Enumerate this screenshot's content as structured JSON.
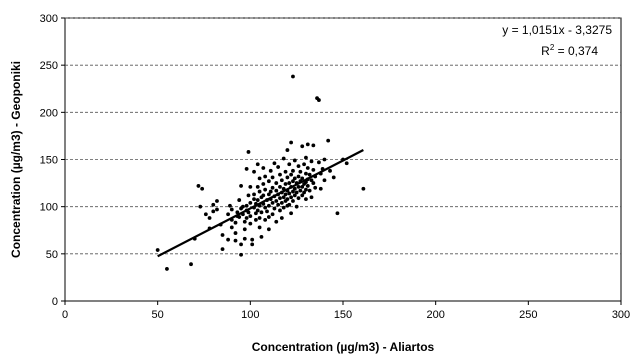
{
  "chart_data": {
    "type": "scatter",
    "title": "",
    "xlabel": "Concentration (µg/m3) - Aliartos",
    "ylabel": "Concentration (µg/m3) - Geoponiki",
    "xlim": [
      0,
      300
    ],
    "ylim": [
      0,
      300
    ],
    "xticks": [
      0,
      50,
      100,
      150,
      200,
      250,
      300
    ],
    "yticks": [
      0,
      50,
      100,
      150,
      200,
      250,
      300
    ],
    "xtick_labels": [
      "0",
      "50",
      "100",
      "150",
      "200",
      "250",
      "300"
    ],
    "ytick_labels": [
      "0",
      "50",
      "100",
      "150",
      "200",
      "250",
      "300"
    ],
    "grid": "horizontal dashed",
    "annotation": {
      "equation": "y = 1,0151x - 3,3275",
      "r2_label": "R",
      "r2_sup": "2",
      "r2_value": " = 0,374",
      "placement": "top-right"
    },
    "trendline": {
      "slope": 1.0151,
      "intercept": -3.3275,
      "x_range": [
        50,
        161
      ]
    },
    "colors": {
      "points": "#000000",
      "line": "#000000",
      "grid": "#555555"
    },
    "points": [
      [
        50,
        54
      ],
      [
        55,
        34
      ],
      [
        68,
        39
      ],
      [
        70,
        66
      ],
      [
        72,
        122
      ],
      [
        74,
        119
      ],
      [
        73,
        100
      ],
      [
        76,
        92
      ],
      [
        78,
        77
      ],
      [
        78,
        88
      ],
      [
        80,
        102
      ],
      [
        80,
        95
      ],
      [
        82,
        106
      ],
      [
        82,
        97
      ],
      [
        84,
        81
      ],
      [
        85,
        70
      ],
      [
        85,
        55
      ],
      [
        88,
        65
      ],
      [
        88,
        92
      ],
      [
        89,
        101
      ],
      [
        90,
        97
      ],
      [
        90,
        86
      ],
      [
        90,
        78
      ],
      [
        92,
        83
      ],
      [
        92,
        72
      ],
      [
        92,
        64
      ],
      [
        93,
        94
      ],
      [
        93,
        90
      ],
      [
        94,
        107
      ],
      [
        94,
        89
      ],
      [
        95,
        122
      ],
      [
        95,
        98
      ],
      [
        95,
        60
      ],
      [
        95,
        49
      ],
      [
        96,
        100
      ],
      [
        96,
        92
      ],
      [
        97,
        84
      ],
      [
        97,
        76
      ],
      [
        97,
        66
      ],
      [
        98,
        140
      ],
      [
        98,
        101
      ],
      [
        98,
        96
      ],
      [
        98,
        88
      ],
      [
        99,
        158
      ],
      [
        99,
        112
      ],
      [
        99,
        94
      ],
      [
        100,
        121
      ],
      [
        100,
        104
      ],
      [
        100,
        90
      ],
      [
        100,
        82
      ],
      [
        101,
        65
      ],
      [
        101,
        60
      ],
      [
        102,
        137
      ],
      [
        102,
        113
      ],
      [
        102,
        108
      ],
      [
        102,
        99
      ],
      [
        103,
        103
      ],
      [
        103,
        93
      ],
      [
        103,
        86
      ],
      [
        104,
        145
      ],
      [
        104,
        121
      ],
      [
        104,
        107
      ],
      [
        104,
        96
      ],
      [
        105,
        130
      ],
      [
        105,
        116
      ],
      [
        105,
        101
      ],
      [
        105,
        88
      ],
      [
        105,
        78
      ],
      [
        106,
        110
      ],
      [
        106,
        94
      ],
      [
        106,
        68
      ],
      [
        107,
        141
      ],
      [
        107,
        124
      ],
      [
        107,
        112
      ],
      [
        107,
        103
      ],
      [
        108,
        132
      ],
      [
        108,
        118
      ],
      [
        108,
        99
      ],
      [
        108,
        86
      ],
      [
        109,
        107
      ],
      [
        109,
        95
      ],
      [
        110,
        127
      ],
      [
        110,
        113
      ],
      [
        110,
        101
      ],
      [
        110,
        89
      ],
      [
        110,
        76
      ],
      [
        111,
        138
      ],
      [
        111,
        116
      ],
      [
        111,
        108
      ],
      [
        112,
        131
      ],
      [
        112,
        120
      ],
      [
        112,
        104
      ],
      [
        112,
        92
      ],
      [
        113,
        146
      ],
      [
        113,
        111
      ],
      [
        113,
        98
      ],
      [
        114,
        125
      ],
      [
        114,
        117
      ],
      [
        114,
        106
      ],
      [
        114,
        84
      ],
      [
        115,
        142
      ],
      [
        115,
        113
      ],
      [
        115,
        102
      ],
      [
        116,
        134
      ],
      [
        116,
        121
      ],
      [
        116,
        109
      ],
      [
        116,
        96
      ],
      [
        117,
        128
      ],
      [
        117,
        115
      ],
      [
        117,
        104
      ],
      [
        117,
        88
      ],
      [
        118,
        151
      ],
      [
        118,
        119
      ],
      [
        118,
        110
      ],
      [
        118,
        99
      ],
      [
        119,
        137
      ],
      [
        119,
        124
      ],
      [
        119,
        113
      ],
      [
        119,
        106
      ],
      [
        120,
        160
      ],
      [
        120,
        131
      ],
      [
        120,
        117
      ],
      [
        120,
        108
      ],
      [
        120,
        101
      ],
      [
        121,
        145
      ],
      [
        121,
        125
      ],
      [
        121,
        114
      ],
      [
        121,
        102
      ],
      [
        122,
        168
      ],
      [
        122,
        134
      ],
      [
        122,
        121
      ],
      [
        122,
        110
      ],
      [
        122,
        93
      ],
      [
        123,
        238
      ],
      [
        123,
        138
      ],
      [
        123,
        127
      ],
      [
        123,
        116
      ],
      [
        123,
        106
      ],
      [
        124,
        149
      ],
      [
        124,
        130
      ],
      [
        124,
        119
      ],
      [
        124,
        112
      ],
      [
        125,
        125
      ],
      [
        125,
        115
      ],
      [
        125,
        100
      ],
      [
        126,
        143
      ],
      [
        126,
        132
      ],
      [
        126,
        121
      ],
      [
        126,
        109
      ],
      [
        127,
        137
      ],
      [
        127,
        127
      ],
      [
        127,
        117
      ],
      [
        128,
        164
      ],
      [
        128,
        130
      ],
      [
        128,
        121
      ],
      [
        128,
        112
      ],
      [
        129,
        145
      ],
      [
        129,
        124
      ],
      [
        129,
        115
      ],
      [
        130,
        152
      ],
      [
        130,
        135
      ],
      [
        130,
        126
      ],
      [
        130,
        118
      ],
      [
        130,
        108
      ],
      [
        131,
        166
      ],
      [
        131,
        141
      ],
      [
        131,
        129
      ],
      [
        131,
        122
      ],
      [
        132,
        134
      ],
      [
        132,
        117
      ],
      [
        133,
        148
      ],
      [
        133,
        128
      ],
      [
        133,
        110
      ],
      [
        134,
        165
      ],
      [
        134,
        139
      ],
      [
        134,
        125
      ],
      [
        135,
        132
      ],
      [
        135,
        120
      ],
      [
        136,
        215
      ],
      [
        137,
        213
      ],
      [
        137,
        147
      ],
      [
        138,
        135
      ],
      [
        138,
        119
      ],
      [
        139,
        140
      ],
      [
        140,
        128
      ],
      [
        140,
        150
      ],
      [
        142,
        170
      ],
      [
        143,
        138
      ],
      [
        145,
        131
      ],
      [
        147,
        93
      ],
      [
        150,
        150
      ],
      [
        152,
        146
      ],
      [
        161,
        119
      ]
    ]
  }
}
